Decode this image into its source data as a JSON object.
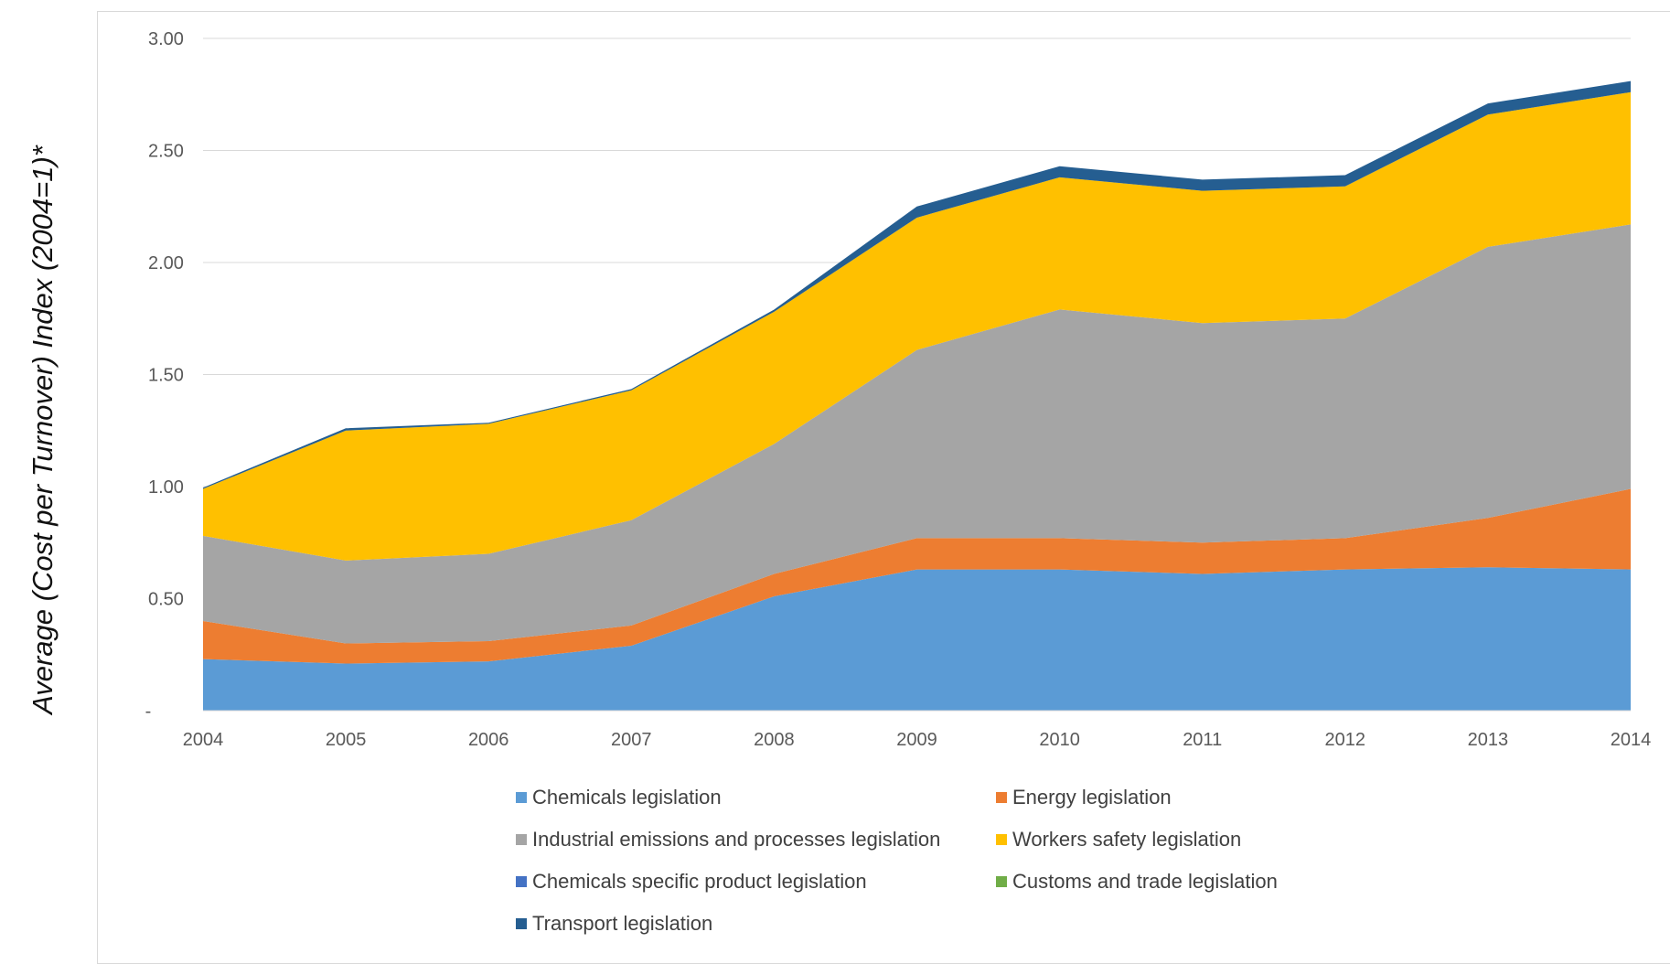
{
  "chart_data": {
    "type": "area",
    "stacked": true,
    "ylabel": "Average (Cost per Turnover) Index (2004=1)*",
    "xlabel": "",
    "x": [
      "2004",
      "2005",
      "2006",
      "2007",
      "2008",
      "2009",
      "2010",
      "2011",
      "2012",
      "2013",
      "2014"
    ],
    "ylim": [
      0,
      3.0
    ],
    "yticks": [
      {
        "value": 0,
        "label": "-"
      },
      {
        "value": 0.5,
        "label": "0.50"
      },
      {
        "value": 1.0,
        "label": "1.00"
      },
      {
        "value": 1.5,
        "label": "1.50"
      },
      {
        "value": 2.0,
        "label": "2.00"
      },
      {
        "value": 2.5,
        "label": "2.50"
      },
      {
        "value": 3.0,
        "label": "3.00"
      }
    ],
    "grid": true,
    "legend_position": "bottom",
    "series": [
      {
        "name": "Chemicals legislation",
        "color": "#5b9bd5",
        "values": [
          0.23,
          0.21,
          0.22,
          0.29,
          0.51,
          0.63,
          0.63,
          0.61,
          0.63,
          0.64,
          0.63
        ]
      },
      {
        "name": "Energy legislation",
        "color": "#ed7d31",
        "values": [
          0.17,
          0.09,
          0.09,
          0.09,
          0.1,
          0.14,
          0.14,
          0.14,
          0.14,
          0.22,
          0.36
        ]
      },
      {
        "name": "Industrial emissions and processes legislation",
        "color": "#a5a5a5",
        "values": [
          0.38,
          0.37,
          0.39,
          0.47,
          0.58,
          0.84,
          1.02,
          0.98,
          0.98,
          1.21,
          1.18
        ]
      },
      {
        "name": "Workers safety legislation",
        "color": "#ffc000",
        "values": [
          0.21,
          0.58,
          0.58,
          0.58,
          0.59,
          0.59,
          0.59,
          0.59,
          0.59,
          0.59,
          0.59
        ]
      },
      {
        "name": "Chemicals specific product legislation",
        "color": "#4472c4",
        "values": [
          0.0,
          0.0,
          0.0,
          0.0,
          0.0,
          0.0,
          0.0,
          0.0,
          0.0,
          0.0,
          0.0
        ]
      },
      {
        "name": "Customs and trade legislation",
        "color": "#70ad47",
        "values": [
          0.0,
          0.0,
          0.0,
          0.0,
          0.0,
          0.0,
          0.0,
          0.0,
          0.0,
          0.0,
          0.0
        ]
      },
      {
        "name": "Transport legislation",
        "color": "#255e91",
        "values": [
          0.005,
          0.01,
          0.005,
          0.005,
          0.01,
          0.05,
          0.05,
          0.05,
          0.05,
          0.05,
          0.05
        ]
      }
    ]
  }
}
